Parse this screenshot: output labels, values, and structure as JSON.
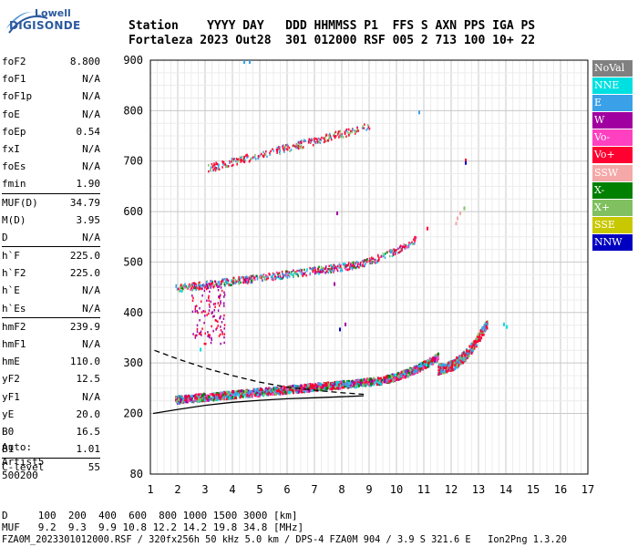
{
  "logo": {
    "top": "Lowell",
    "bottom": "DIGISONDE"
  },
  "header": {
    "line1": "Station    YYYY DAY   DDD HHMMSS P1  FFS S AXN PPS IGA PS",
    "line2": "Fortaleza 2023 Out28  301 012000 RSF 005 2 713 100 10+ 22"
  },
  "params": [
    {
      "label": "foF2",
      "value": "8.800"
    },
    {
      "label": "foF1",
      "value": "N/A"
    },
    {
      "label": "foF1p",
      "value": "N/A"
    },
    {
      "label": "foE",
      "value": "N/A"
    },
    {
      "label": "foEp",
      "value": "0.54"
    },
    {
      "label": "fxI",
      "value": "N/A"
    },
    {
      "label": "foEs",
      "value": "N/A"
    },
    {
      "label": "fmin",
      "value": "1.90"
    },
    {
      "label": "MUF(D)",
      "value": "34.79",
      "sep": true
    },
    {
      "label": "M(D)",
      "value": "3.95"
    },
    {
      "label": "D",
      "value": "N/A"
    },
    {
      "label": "h`F",
      "value": "225.0",
      "sep": true
    },
    {
      "label": "h`F2",
      "value": "225.0"
    },
    {
      "label": "h`E",
      "value": "N/A"
    },
    {
      "label": "h`Es",
      "value": "N/A"
    },
    {
      "label": "hmF2",
      "value": "239.9",
      "sep": true
    },
    {
      "label": "hmF1",
      "value": "N/A"
    },
    {
      "label": "hmE",
      "value": "110.0"
    },
    {
      "label": "yF2",
      "value": "12.5"
    },
    {
      "label": "yF1",
      "value": "N/A"
    },
    {
      "label": "yE",
      "value": "20.0"
    },
    {
      "label": "B0",
      "value": "16.5"
    },
    {
      "label": "B1",
      "value": "1.01"
    },
    {
      "label": "C-level",
      "value": "55",
      "sep": true
    }
  ],
  "auto": [
    "Auto:",
    "Artist5",
    "500200"
  ],
  "legend": [
    {
      "label": "NoVal",
      "color": "#808080"
    },
    {
      "label": "NNE",
      "color": "#00e0e0"
    },
    {
      "label": "E",
      "color": "#3aa0e8"
    },
    {
      "label": "W",
      "color": "#a000a0"
    },
    {
      "label": "Vo-",
      "color": "#ff40c0"
    },
    {
      "label": "Vo+",
      "color": "#ff0030"
    },
    {
      "label": "SSW",
      "color": "#f4a8a8"
    },
    {
      "label": "X-",
      "color": "#008000"
    },
    {
      "label": "X+",
      "color": "#80c060"
    },
    {
      "label": "SSE",
      "color": "#c8c800"
    },
    {
      "label": "NNW",
      "color": "#0000c0"
    }
  ],
  "chart_data": {
    "type": "scatter",
    "x_ticks": [
      "1",
      "2",
      "3",
      "4",
      "5",
      "6",
      "7",
      "8",
      "9",
      "10",
      "11",
      "12",
      "13",
      "14",
      "15",
      "16",
      "17"
    ],
    "y_ticks": [
      "80",
      "200",
      "300",
      "400",
      "500",
      "600",
      "700",
      "800",
      "900"
    ],
    "xlim": [
      1,
      17
    ],
    "ylim": [
      80,
      900
    ],
    "grid": true,
    "traces": [
      {
        "name": "O-trace F2",
        "x_range": [
          1.9,
          13.3
        ],
        "y_range": [
          220,
          395
        ]
      },
      {
        "name": "2nd hop",
        "x_range": [
          1.9,
          11.2
        ],
        "y_range": [
          440,
          575
        ]
      },
      {
        "name": "3rd hop",
        "x_range": [
          3.1,
          9.0
        ],
        "y_range": [
          680,
          790
        ]
      }
    ],
    "profile_solid": [
      [
        1.1,
        200
      ],
      [
        2,
        208
      ],
      [
        3,
        216
      ],
      [
        4,
        222
      ],
      [
        5,
        226
      ],
      [
        6,
        229
      ],
      [
        7,
        231
      ],
      [
        8,
        233
      ],
      [
        8.8,
        235
      ]
    ],
    "profile_dashed": [
      [
        1.15,
        325
      ],
      [
        2,
        308
      ],
      [
        3,
        290
      ],
      [
        4,
        275
      ],
      [
        5,
        262
      ],
      [
        6,
        252
      ],
      [
        7,
        246
      ],
      [
        8,
        241
      ],
      [
        8.8,
        238
      ]
    ]
  },
  "footer": {
    "line1": "D     100  200  400  600  800 1000 1500 3000 [km]",
    "line2": "MUF   9.2  9.3  9.9 10.8 12.2 14.2 19.8 34.8 [MHz]",
    "line3": "FZA0M_2023301012000.RSF / 320fx256h 50 kHz 5.0 km / DPS-4 FZA0M 904 / 3.9 S 321.6 E   Ion2Png 1.3.20"
  }
}
